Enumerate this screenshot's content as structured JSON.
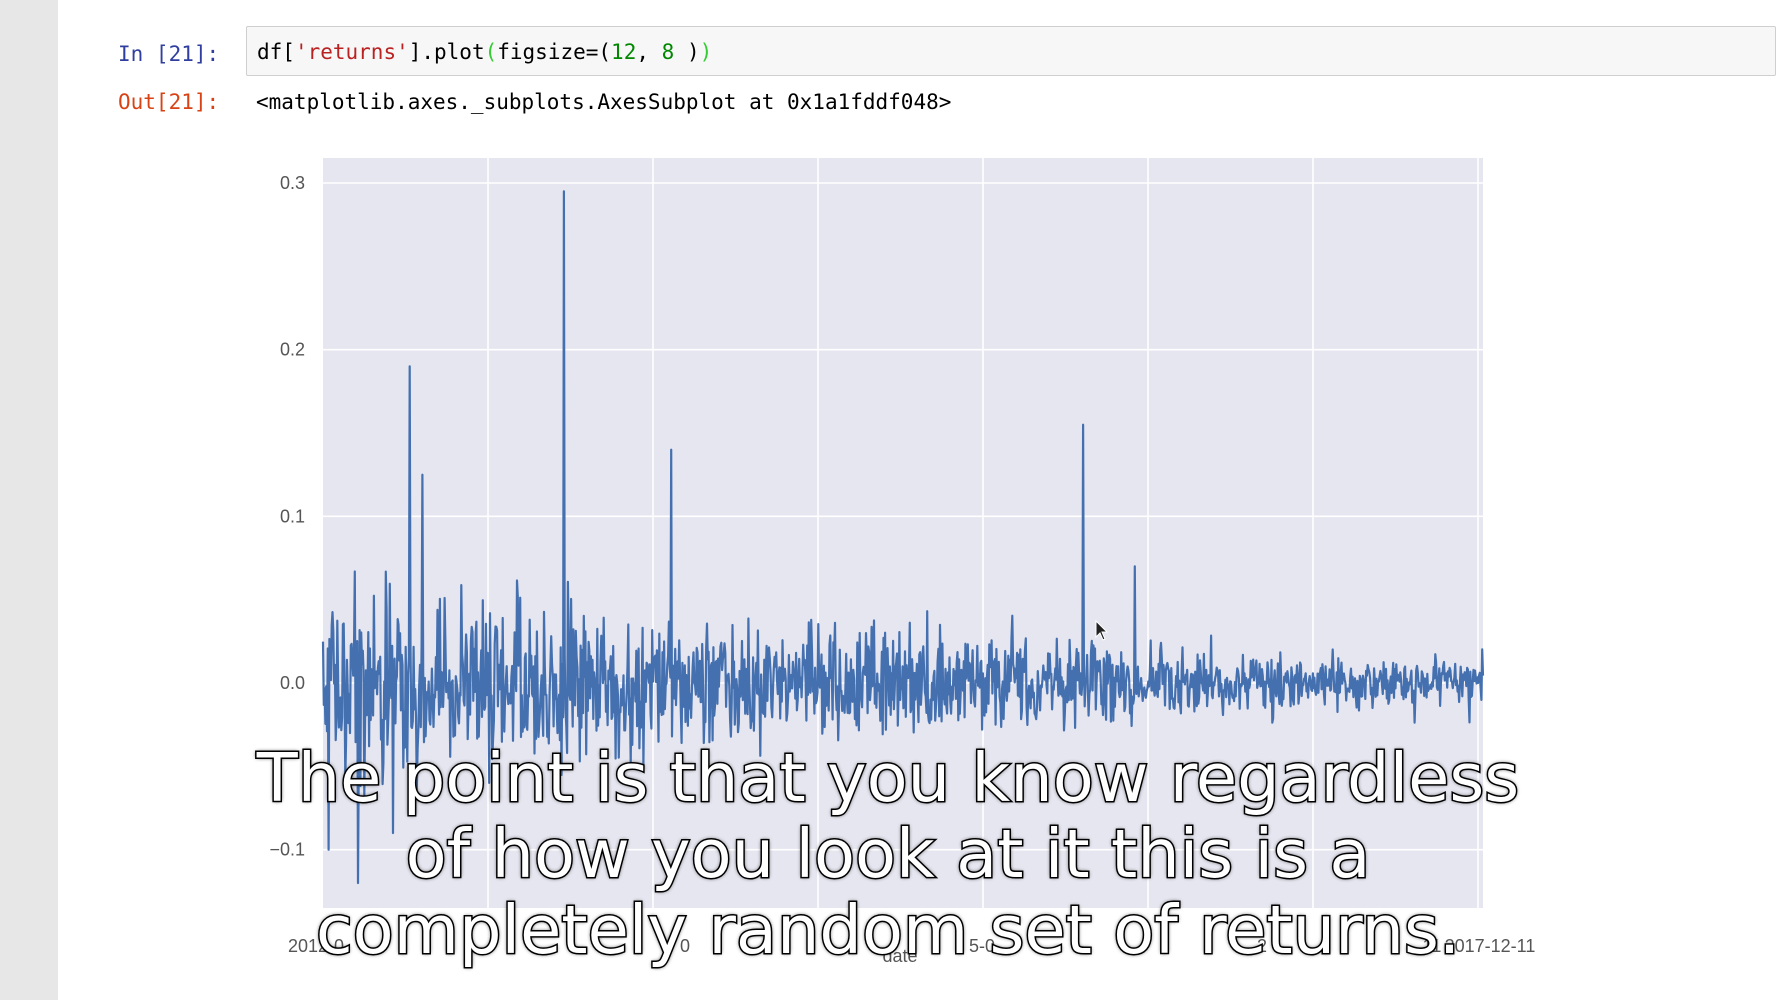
{
  "cell": {
    "in_prompt": "In [21]:",
    "code": {
      "p1": "df[",
      "str": "'returns'",
      "p2": "].plot",
      "paren_open": "(",
      "p3": "figsize=(",
      "n1": "12",
      "p4": ", ",
      "n2": "8",
      "p5": " )",
      "paren_close": ")"
    },
    "out_prompt": "Out[21]:",
    "out_text": "<matplotlib.axes._subplots.AxesSubplot at 0x1a1fddf048>"
  },
  "chart_data": {
    "type": "line",
    "style": "seaborn",
    "background": "#e6e6f0",
    "line_color": "#4470b0",
    "grid": true,
    "xlabel": "date",
    "yticks": [
      "0.3",
      "0.2",
      "0.1",
      "0.0",
      "−0.1"
    ],
    "xtick_labels": [
      "2012-0",
      "0",
      "5-0",
      "2",
      "11",
      "2017-12-11"
    ],
    "ylim": [
      -0.135,
      0.315
    ],
    "n_points": 1460,
    "noise_std_start": 0.038,
    "noise_std_end": 0.008,
    "spikes": [
      {
        "t": 0.075,
        "value": 0.19
      },
      {
        "t": 0.086,
        "value": 0.125
      },
      {
        "t": 0.208,
        "value": 0.295
      },
      {
        "t": 0.3,
        "value": 0.14
      },
      {
        "t": 0.655,
        "value": 0.155
      },
      {
        "t": 0.7,
        "value": 0.07
      },
      {
        "t": 0.005,
        "value": -0.1
      },
      {
        "t": 0.03,
        "value": -0.12
      },
      {
        "t": 0.06,
        "value": -0.09
      }
    ]
  },
  "subtitle": {
    "line1": "The point is that you know regardless",
    "line2": "of how you look at it this is a",
    "line3": "completely random set of returns."
  }
}
